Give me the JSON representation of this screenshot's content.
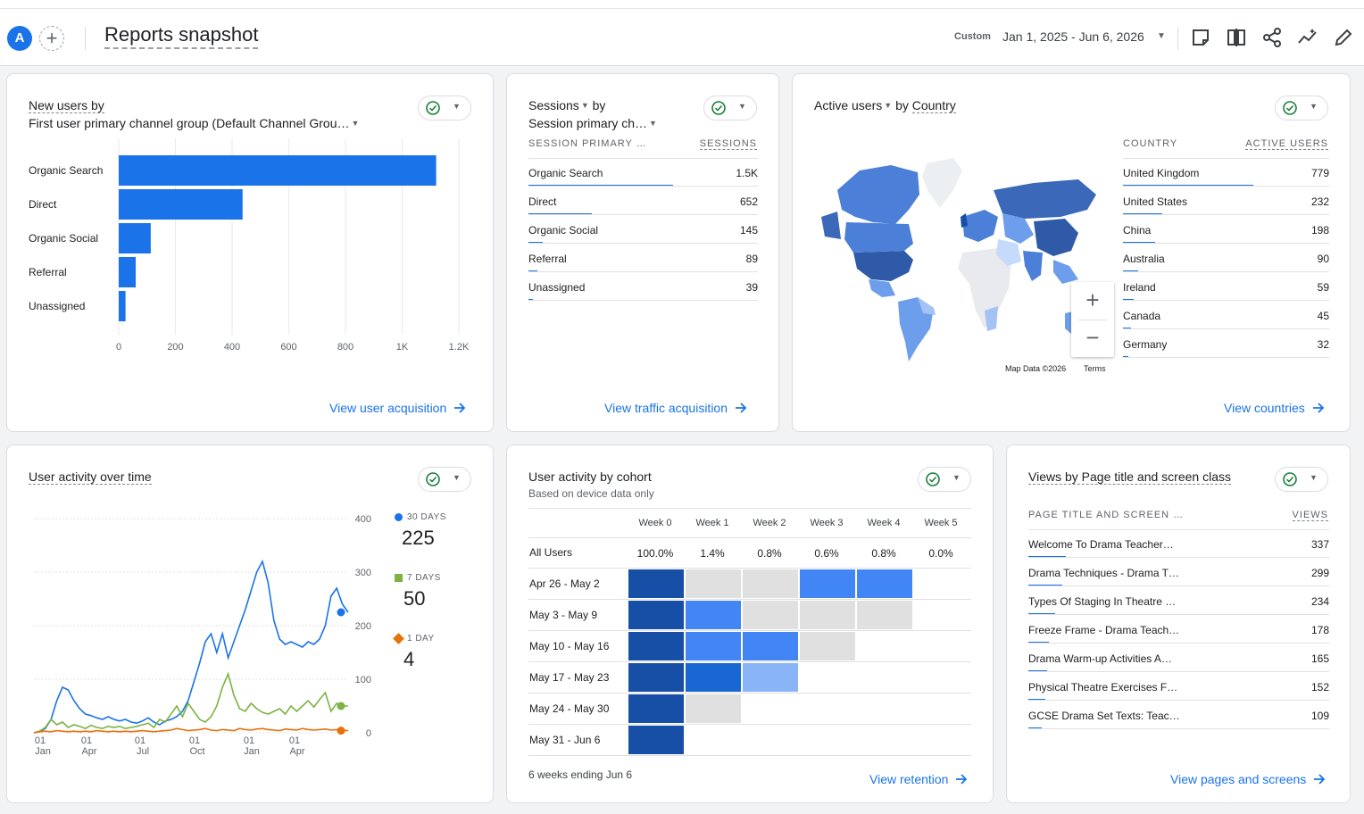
{
  "header": {
    "avatar_letter": "A",
    "add_symbol": "+",
    "title": "Reports snapshot",
    "date_label": "Custom",
    "date_range": "Jan 1, 2025 - Jun 6, 2026",
    "icons": [
      "annotation-icon",
      "compare-icon",
      "share-icon",
      "insights-icon",
      "edit-icon"
    ]
  },
  "new_users": {
    "title_line1": "New users by",
    "title_line2": "First user primary channel group (Default Channel Grou…",
    "link": "View user acquisition",
    "tick_labels": [
      "0",
      "200",
      "400",
      "600",
      "800",
      "1K",
      "1.2K"
    ],
    "chart_data": {
      "type": "bar",
      "orientation": "horizontal",
      "categories": [
        "Organic Search",
        "Direct",
        "Organic Social",
        "Referral",
        "Unassigned"
      ],
      "values": [
        1120,
        437,
        113,
        60,
        24
      ],
      "xlim": [
        0,
        1200
      ],
      "color": "#1a73e8"
    }
  },
  "sessions": {
    "title_line1": "Sessions",
    "title_by": "by",
    "title_line2": "Session primary ch…",
    "col1": "SESSION PRIMARY …",
    "col2": "SESSIONS",
    "rows": [
      {
        "label": "Organic Search",
        "value": "1.5K",
        "frac": 1.0
      },
      {
        "label": "Direct",
        "value": "652",
        "frac": 0.44
      },
      {
        "label": "Organic Social",
        "value": "145",
        "frac": 0.1
      },
      {
        "label": "Referral",
        "value": "89",
        "frac": 0.06
      },
      {
        "label": "Unassigned",
        "value": "39",
        "frac": 0.03
      }
    ],
    "link": "View traffic acquisition"
  },
  "countries": {
    "title_metric": "Active users",
    "title_by": "by",
    "title_dim": "Country",
    "col1": "COUNTRY",
    "col2": "ACTIVE USERS",
    "rows": [
      {
        "label": "United Kingdom",
        "value": "779",
        "frac": 1.0
      },
      {
        "label": "United States",
        "value": "232",
        "frac": 0.3
      },
      {
        "label": "China",
        "value": "198",
        "frac": 0.25
      },
      {
        "label": "Australia",
        "value": "90",
        "frac": 0.12
      },
      {
        "label": "Ireland",
        "value": "59",
        "frac": 0.08
      },
      {
        "label": "Canada",
        "value": "45",
        "frac": 0.06
      },
      {
        "label": "Germany",
        "value": "32",
        "frac": 0.04
      }
    ],
    "map_credit": "Map Data ©2026",
    "map_terms": "Terms",
    "zoom_in": "+",
    "zoom_out": "−",
    "link": "View countries"
  },
  "activity": {
    "title": "User activity over time",
    "y_ticks": [
      "400",
      "300",
      "200",
      "100",
      "0"
    ],
    "x_ticks": [
      {
        "d": "01",
        "m": "Jan"
      },
      {
        "d": "01",
        "m": "Apr"
      },
      {
        "d": "01",
        "m": "Jul"
      },
      {
        "d": "01",
        "m": "Oct"
      },
      {
        "d": "01",
        "m": "Jan"
      },
      {
        "d": "01",
        "m": "Apr"
      }
    ],
    "legend": [
      {
        "label": "30 DAYS",
        "value": "225",
        "color": "#1a73e8"
      },
      {
        "label": "7 DAYS",
        "value": "50",
        "color": "#7cb342"
      },
      {
        "label": "1 DAY",
        "value": "4",
        "color": "#e8710a"
      }
    ],
    "chart_data": {
      "type": "line",
      "ylim": [
        0,
        400
      ],
      "x_range": [
        "2025-01-01",
        "2026-06-06"
      ],
      "series": [
        {
          "name": "30 DAYS",
          "color": "#1a73e8",
          "values": [
            0,
            2,
            8,
            25,
            60,
            85,
            80,
            60,
            45,
            35,
            32,
            28,
            25,
            30,
            25,
            22,
            25,
            20,
            18,
            22,
            28,
            20,
            15,
            22,
            25,
            30,
            40,
            60,
            95,
            130,
            170,
            185,
            150,
            185,
            140,
            170,
            200,
            230,
            265,
            300,
            320,
            280,
            210,
            175,
            165,
            170,
            165,
            160,
            170,
            165,
            175,
            200,
            255,
            270,
            240,
            225
          ]
        },
        {
          "name": "7 DAYS",
          "color": "#7cb342",
          "values": [
            0,
            3,
            10,
            25,
            15,
            20,
            10,
            15,
            12,
            8,
            14,
            10,
            8,
            12,
            10,
            12,
            8,
            10,
            12,
            15,
            18,
            10,
            25,
            20,
            35,
            50,
            30,
            55,
            40,
            25,
            20,
            30,
            50,
            85,
            110,
            70,
            45,
            40,
            55,
            45,
            38,
            35,
            40,
            45,
            35,
            50,
            40,
            50,
            60,
            48,
            62,
            75,
            40,
            55,
            50,
            50
          ]
        },
        {
          "name": "1 DAY",
          "color": "#e8710a",
          "values": [
            0,
            2,
            3,
            2,
            4,
            3,
            2,
            3,
            2,
            3,
            2,
            4,
            3,
            2,
            3,
            2,
            3,
            2,
            3,
            4,
            3,
            2,
            3,
            4,
            5,
            8,
            6,
            4,
            5,
            6,
            8,
            5,
            4,
            6,
            5,
            4,
            8,
            6,
            5,
            7,
            8,
            6,
            5,
            4,
            7,
            6,
            5,
            8,
            6,
            5,
            6,
            7,
            5,
            6,
            5,
            4
          ]
        }
      ]
    }
  },
  "cohort": {
    "title": "User activity by cohort",
    "subtitle": "Based on device data only",
    "weeks": [
      "Week 0",
      "Week 1",
      "Week 2",
      "Week 3",
      "Week 4",
      "Week 5"
    ],
    "all_users_label": "All Users",
    "all_users": [
      "100.0%",
      "1.4%",
      "0.8%",
      "0.6%",
      "0.8%",
      "0.0%"
    ],
    "rows": [
      {
        "label": "Apr 26 - May 2",
        "cells": [
          "dark",
          "light",
          "light",
          "med",
          "med",
          "none"
        ]
      },
      {
        "label": "May 3 - May 9",
        "cells": [
          "dark",
          "med",
          "light",
          "light",
          "light"
        ]
      },
      {
        "label": "May 10 - May 16",
        "cells": [
          "dark",
          "med",
          "med",
          "light"
        ]
      },
      {
        "label": "May 17 - May 23",
        "cells": [
          "dark",
          "deep",
          "pale"
        ]
      },
      {
        "label": "May 24 - May 30",
        "cells": [
          "dark",
          "light"
        ]
      },
      {
        "label": "May 31 - Jun 6",
        "cells": [
          "dark"
        ]
      }
    ],
    "colors": {
      "dark": "#174ea6",
      "deep": "#1967d2",
      "med": "#4285f4",
      "pale": "#8ab4f8",
      "light": "#e0e0e0"
    },
    "footer": "6 weeks ending Jun 6",
    "link": "View retention"
  },
  "pages": {
    "title": "Views by Page title and screen class",
    "col1": "PAGE TITLE AND SCREEN …",
    "col2": "VIEWS",
    "rows": [
      {
        "label": "Welcome To Drama Teacher…",
        "value": "337",
        "frac": 0.2
      },
      {
        "label": "Drama Techniques - Drama T…",
        "value": "299",
        "frac": 0.18
      },
      {
        "label": "Types Of Staging In Theatre …",
        "value": "234",
        "frac": 0.14
      },
      {
        "label": "Freeze Frame - Drama Teach…",
        "value": "178",
        "frac": 0.11
      },
      {
        "label": "Drama Warm-up Activities A…",
        "value": "165",
        "frac": 0.1
      },
      {
        "label": "Physical Theatre Exercises F…",
        "value": "152",
        "frac": 0.09
      },
      {
        "label": "GCSE Drama Set Texts: Teac…",
        "value": "109",
        "frac": 0.07
      }
    ],
    "link": "View pages and screens"
  }
}
